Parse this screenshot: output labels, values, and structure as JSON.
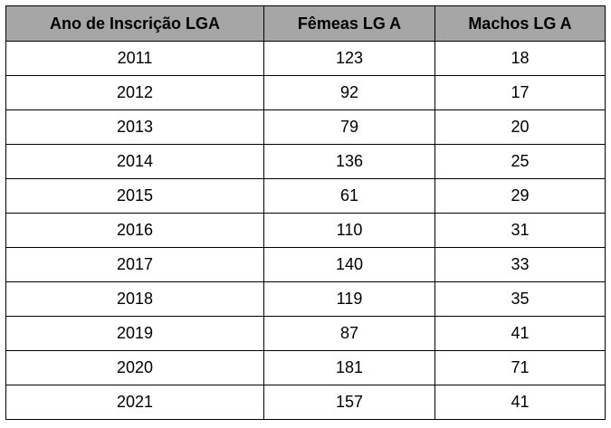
{
  "table": {
    "headers": [
      "Ano de Inscrição LGA",
      "Fêmeas LG A",
      "Machos LG A"
    ],
    "rows": [
      [
        "2011",
        "123",
        "18"
      ],
      [
        "2012",
        "92",
        "17"
      ],
      [
        "2013",
        "79",
        "20"
      ],
      [
        "2014",
        "136",
        "25"
      ],
      [
        "2015",
        "61",
        "29"
      ],
      [
        "2016",
        "110",
        "31"
      ],
      [
        "2017",
        "140",
        "33"
      ],
      [
        "2018",
        "119",
        "35"
      ],
      [
        "2019",
        "87",
        "41"
      ],
      [
        "2020",
        "181",
        "71"
      ],
      [
        "2021",
        "157",
        "41"
      ]
    ]
  },
  "colors": {
    "header_bg": "#a6a6a6",
    "border": "#000000",
    "text": "#000000"
  }
}
